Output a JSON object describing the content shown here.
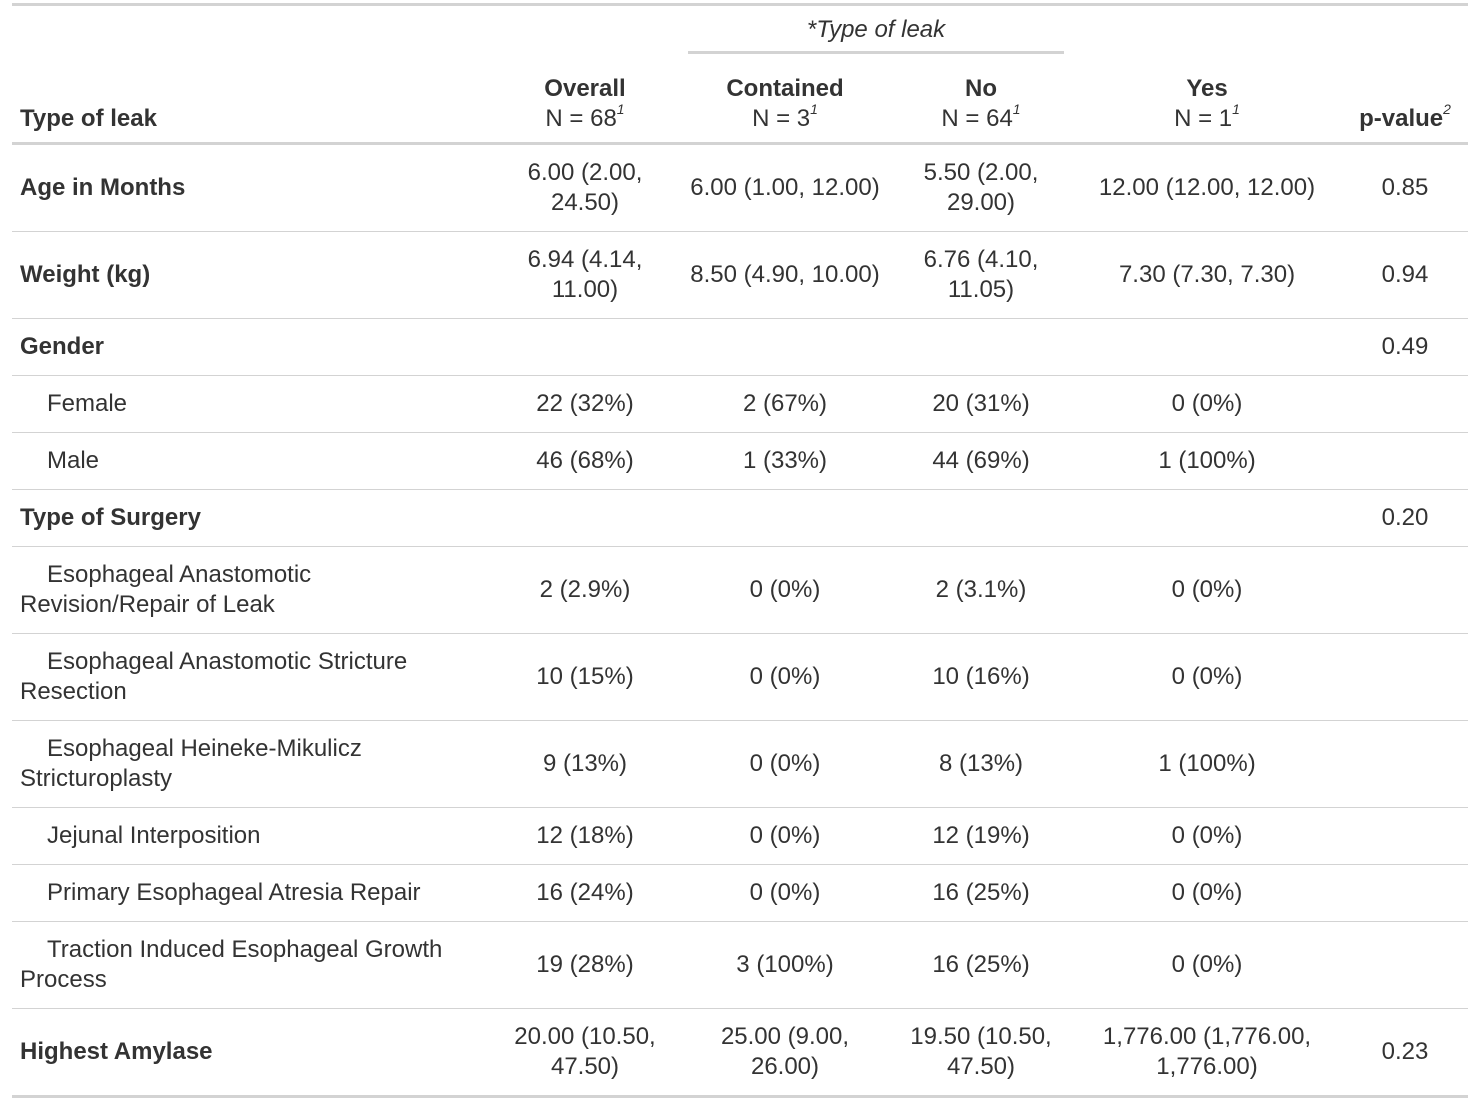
{
  "spanner": {
    "star": "*",
    "label": "Type of leak"
  },
  "columns": {
    "label": "Type of leak",
    "overall": {
      "name": "Overall",
      "n": "N = 68",
      "fn": "1"
    },
    "contained": {
      "name": "Contained",
      "n": "N = 3",
      "fn": "1"
    },
    "no": {
      "name": "No",
      "n": "N = 64",
      "fn": "1"
    },
    "yes": {
      "name": "Yes",
      "n": "N = 1",
      "fn": "1"
    },
    "pvalue": {
      "name": "p-value",
      "fn": "2"
    }
  },
  "rows": [
    {
      "label": "Age in Months",
      "type": "var",
      "overall": "6.00 (2.00, 24.50)",
      "contained": "6.00 (1.00, 12.00)",
      "no": "5.50 (2.00, 29.00)",
      "yes": "12.00 (12.00, 12.00)",
      "p": "0.85"
    },
    {
      "label": "Weight (kg)",
      "type": "var",
      "overall": "6.94 (4.14, 11.00)",
      "contained": "8.50 (4.90, 10.00)",
      "no": "6.76 (4.10, 11.05)",
      "yes": "7.30 (7.30, 7.30)",
      "p": "0.94"
    },
    {
      "label": "Gender",
      "type": "var",
      "overall": "",
      "contained": "",
      "no": "",
      "yes": "",
      "p": "0.49"
    },
    {
      "label": "Female",
      "type": "level",
      "overall": "22 (32%)",
      "contained": "2 (67%)",
      "no": "20 (31%)",
      "yes": "0 (0%)",
      "p": ""
    },
    {
      "label": "Male",
      "type": "level",
      "overall": "46 (68%)",
      "contained": "1 (33%)",
      "no": "44 (69%)",
      "yes": "1 (100%)",
      "p": ""
    },
    {
      "label": "Type of Surgery",
      "type": "var",
      "overall": "",
      "contained": "",
      "no": "",
      "yes": "",
      "p": "0.20"
    },
    {
      "label": "Esophageal Anastomotic Revision/Repair of Leak",
      "type": "level",
      "overall": "2 (2.9%)",
      "contained": "0 (0%)",
      "no": "2 (3.1%)",
      "yes": "0 (0%)",
      "p": ""
    },
    {
      "label": "Esophageal Anastomotic Stricture Resection",
      "type": "level",
      "overall": "10 (15%)",
      "contained": "0 (0%)",
      "no": "10 (16%)",
      "yes": "0 (0%)",
      "p": ""
    },
    {
      "label": "Esophageal Heineke-Mikulicz Stricturoplasty",
      "type": "level",
      "overall": "9 (13%)",
      "contained": "0 (0%)",
      "no": "8 (13%)",
      "yes": "1 (100%)",
      "p": ""
    },
    {
      "label": "Jejunal Interposition",
      "type": "level",
      "overall": "12 (18%)",
      "contained": "0 (0%)",
      "no": "12 (19%)",
      "yes": "0 (0%)",
      "p": ""
    },
    {
      "label": "Primary Esophageal Atresia Repair",
      "type": "level",
      "overall": "16 (24%)",
      "contained": "0 (0%)",
      "no": "16 (25%)",
      "yes": "0 (0%)",
      "p": ""
    },
    {
      "label": "Traction Induced Esophageal Growth Process",
      "type": "level",
      "overall": "19 (28%)",
      "contained": "3 (100%)",
      "no": "16 (25%)",
      "yes": "0 (0%)",
      "p": ""
    },
    {
      "label": "Highest Amylase",
      "type": "var",
      "overall": "20.00 (10.50, 47.50)",
      "contained": "25.00 (9.00, 26.00)",
      "no": "19.50 (10.50, 47.50)",
      "yes": "1,776.00 (1,776.00, 1,776.00)",
      "p": "0.23"
    }
  ]
}
